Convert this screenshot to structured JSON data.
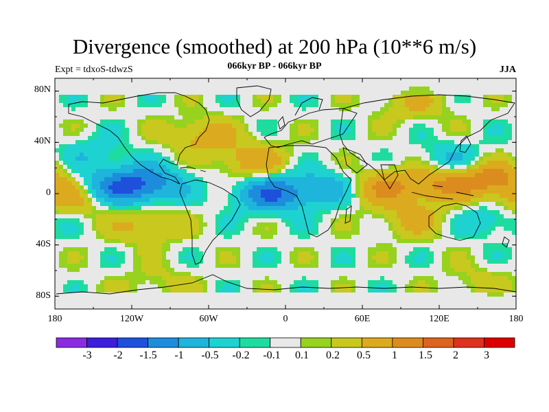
{
  "title": "Divergence (smoothed) at 200 hPa (10**6 m/s)",
  "subtitle": "066kyr BP - 066kyr BP",
  "experiment": "Expt = tdxoS-tdwzS",
  "season": "JJA",
  "map": {
    "lon_range": [
      -180,
      180
    ],
    "lat_range": [
      -90,
      90
    ],
    "y_ticks": [
      "80N",
      "40N",
      "0",
      "40S",
      "80S"
    ],
    "x_ticks": [
      "180",
      "120W",
      "60W",
      "0",
      "60E",
      "120E",
      "180"
    ],
    "background_color": "#e8e8e8"
  },
  "colorbar": {
    "colors": [
      "#8a2be2",
      "#3c1edc",
      "#1e50dc",
      "#1e8cdc",
      "#1eb4dc",
      "#1ed2d2",
      "#1edca0",
      "#e8e8e8",
      "#96d21e",
      "#c8c81e",
      "#dcaa1e",
      "#dc8c1e",
      "#dc641e",
      "#dc321e",
      "#dc0000"
    ],
    "labels": [
      "-3",
      "-2",
      "-1.5",
      "-1",
      "-0.5",
      "-0.2",
      "-0.1",
      "0.1",
      "0.2",
      "0.5",
      "1",
      "1.5",
      "2",
      "3"
    ]
  },
  "chart_data": {
    "type": "heatmap",
    "title": "Divergence (smoothed) at 200 hPa (10**6 m/s)",
    "subtitle": "066kyr BP - 066kyr BP",
    "season": "JJA",
    "levels": [
      -3,
      -2,
      -1.5,
      -1,
      -0.5,
      -0.2,
      -0.1,
      0.1,
      0.2,
      0.5,
      1,
      1.5,
      2,
      3
    ],
    "features": [
      {
        "lon": -130,
        "lat": 5,
        "value": -1.2
      },
      {
        "lon": -105,
        "lat": 8,
        "value": -1.0
      },
      {
        "lon": -10,
        "lat": 0,
        "value": -1.5
      },
      {
        "lon": 35,
        "lat": 5,
        "value": -0.7
      },
      {
        "lon": 130,
        "lat": 25,
        "value": -0.6
      },
      {
        "lon": 160,
        "lat": 12,
        "value": 1.2
      },
      {
        "lon": 75,
        "lat": 5,
        "value": 1.0
      },
      {
        "lon": -25,
        "lat": 25,
        "value": 0.8
      },
      {
        "lon": -170,
        "lat": -5,
        "value": 0.7
      },
      {
        "lon": -110,
        "lat": -25,
        "value": 0.6
      },
      {
        "lon": 120,
        "lat": 8,
        "value": 1.0
      },
      {
        "lon": -65,
        "lat": 45,
        "value": 0.7
      },
      {
        "lon": 100,
        "lat": -20,
        "value": 0.6
      },
      {
        "lon": -150,
        "lat": 30,
        "value": -0.4
      },
      {
        "lon": 160,
        "lat": -20,
        "value": -0.5
      },
      {
        "lon": 100,
        "lat": 70,
        "value": 0.5
      },
      {
        "lon": -100,
        "lat": -70,
        "value": 0.3
      },
      {
        "lon": 150,
        "lat": -70,
        "value": 0.3
      }
    ]
  }
}
